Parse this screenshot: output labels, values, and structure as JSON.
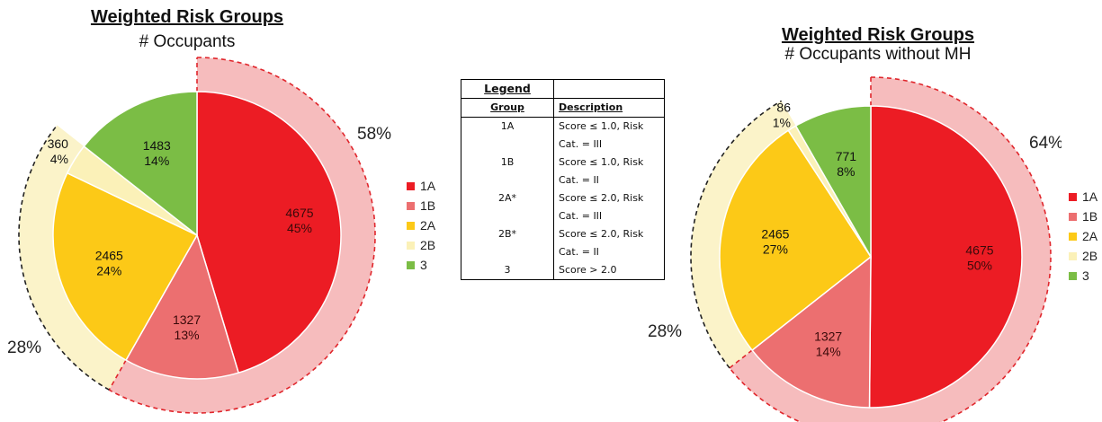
{
  "colors": {
    "1A": "#ec1c24",
    "1B": "#ec6f70",
    "2A": "#fcc917",
    "2B": "#fbf1b8",
    "3": "#7bbd45",
    "outer_1": "#f6bcbd",
    "outer_2": "#fbf3c9"
  },
  "chart_data": [
    {
      "type": "pie",
      "title": "Weighted Risk Groups",
      "subtitle": "# Occupants",
      "slices": [
        {
          "label": "1A",
          "value": 4675,
          "pct": "45%"
        },
        {
          "label": "1B",
          "value": 1327,
          "pct": "13%"
        },
        {
          "label": "2A",
          "value": 2465,
          "pct": "24%"
        },
        {
          "label": "2B",
          "value": 360,
          "pct": "4%"
        },
        {
          "label": "3",
          "value": 1483,
          "pct": "14%"
        }
      ],
      "group_totals": [
        {
          "groups": [
            "1A",
            "1B"
          ],
          "pct": "58%"
        },
        {
          "groups": [
            "2A",
            "2B"
          ],
          "pct": "28%"
        }
      ],
      "legend": [
        "1A",
        "1B",
        "2A",
        "2B",
        "3"
      ]
    },
    {
      "type": "pie",
      "title": "Weighted Risk Groups",
      "subtitle": "# Occupants without MH",
      "slices": [
        {
          "label": "1A",
          "value": 4675,
          "pct": "50%"
        },
        {
          "label": "1B",
          "value": 1327,
          "pct": "14%"
        },
        {
          "label": "2A",
          "value": 2465,
          "pct": "27%"
        },
        {
          "label": "2B",
          "value": 86,
          "pct": "1%"
        },
        {
          "label": "3",
          "value": 771,
          "pct": "8%"
        }
      ],
      "group_totals": [
        {
          "groups": [
            "1A",
            "1B"
          ],
          "pct": "64%"
        },
        {
          "groups": [
            "2A",
            "2B"
          ],
          "pct": "28%"
        }
      ],
      "legend": [
        "1A",
        "1B",
        "2A",
        "2B",
        "3"
      ]
    }
  ],
  "legend_table": {
    "title": "Legend",
    "col_group": "Group",
    "col_description": "Description",
    "rows": [
      {
        "group": "1A",
        "desc1": "Score ≤ 1.0, Risk",
        "desc2": "Cat. = III"
      },
      {
        "group": "1B",
        "desc1": "Score ≤ 1.0, Risk",
        "desc2": "Cat. = II"
      },
      {
        "group": "2A*",
        "desc1": "Score ≤ 2.0, Risk",
        "desc2": "Cat. = III"
      },
      {
        "group": "2B*",
        "desc1": "Score ≤ 2.0, Risk",
        "desc2": "Cat. = II"
      },
      {
        "group": "3",
        "desc1": "Score > 2.0",
        "desc2": ""
      }
    ]
  }
}
